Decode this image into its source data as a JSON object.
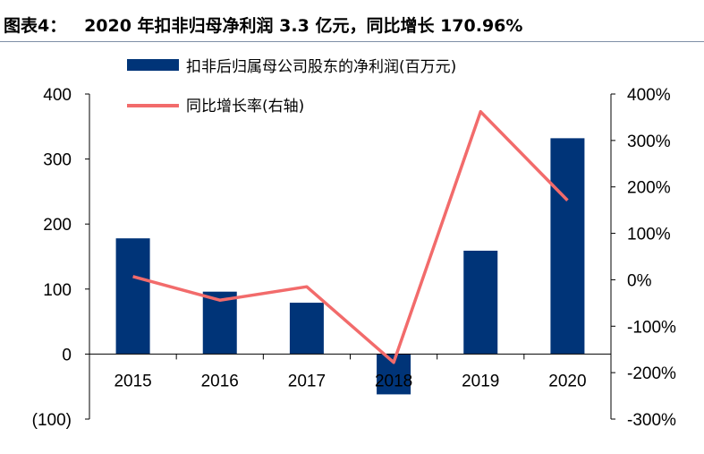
{
  "title": "图表4：   2020 年扣非归母净利润 3.3 亿元，同比增长 170.96%",
  "chart_data": {
    "type": "bar+line",
    "categories": [
      "2015",
      "2016",
      "2017",
      "2018",
      "2019",
      "2020"
    ],
    "series": [
      {
        "name": "扣非后归属母公司股东的净利润(百万元)",
        "type": "bar",
        "axis": "left",
        "color": "#003478",
        "values": [
          178,
          96,
          79,
          -62,
          159,
          332
        ]
      },
      {
        "name": "同比增长率(右轴)",
        "type": "line",
        "axis": "right",
        "color": "#f26b6b",
        "values": [
          7,
          -44,
          -15,
          -178,
          362,
          171
        ]
      }
    ],
    "left_axis": {
      "range": [
        -100,
        400
      ],
      "ticks": [
        400,
        300,
        200,
        100,
        0,
        -100
      ],
      "tick_labels": [
        "400",
        "300",
        "200",
        "100",
        "0",
        "(100)"
      ]
    },
    "right_axis": {
      "range": [
        -300,
        400
      ],
      "ticks": [
        400,
        300,
        200,
        100,
        0,
        -100,
        -200,
        -300
      ],
      "tick_labels": [
        "400%",
        "300%",
        "200%",
        "100%",
        "0%",
        "-100%",
        "-200%",
        "-300%"
      ]
    },
    "legend": "top-left",
    "grid": false
  }
}
